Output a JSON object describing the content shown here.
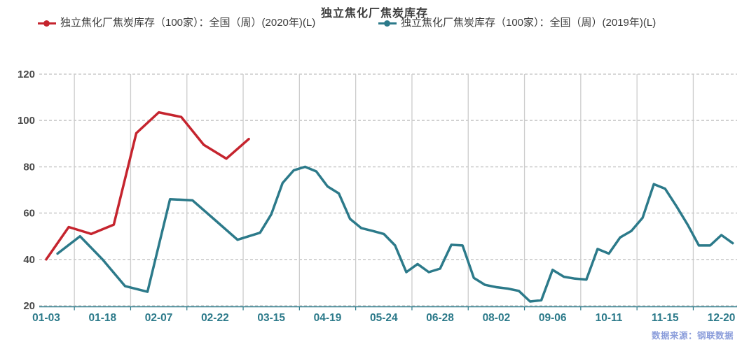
{
  "watermark": {
    "text": "数据来源：钢联数据"
  },
  "chart_data": {
    "type": "line",
    "title": "独立焦化厂焦炭库存",
    "legend_position": "top",
    "categories": [
      "01-03",
      "01-18",
      "02-07",
      "02-22",
      "03-15",
      "04-19",
      "05-24",
      "06-28",
      "08-02",
      "09-06",
      "10-11",
      "11-15",
      "12-20"
    ],
    "x_unit": "category-label index (0 = 01-03 tick, 12 = 12-20 tick)",
    "y_axis": {
      "min": 20,
      "max": 120,
      "ticks": [
        20,
        40,
        60,
        80,
        100,
        120
      ]
    },
    "grid": {
      "horizontal": "dashed",
      "vertical": "solid"
    },
    "colors": {
      "red": "#c5242e",
      "teal": "#2c7a8a",
      "grid": "#cccccc",
      "axis_line": "#2c7a8a",
      "y_label": "#4a4a4a",
      "x_label": "#2c7a8a",
      "title": "#3d3d3d",
      "legend_text": "#3c3c3c",
      "watermark": "#8094d8",
      "background": "#ffffff"
    },
    "series": [
      {
        "name": "独立焦化厂焦炭库存（100家）：全国（周）(2020年)(L)",
        "year": "2020",
        "color": "#c5242e",
        "points": [
          [
            0.0,
            40
          ],
          [
            0.4,
            54
          ],
          [
            0.8,
            51
          ],
          [
            1.2,
            55
          ],
          [
            1.6,
            94.5
          ],
          [
            2.0,
            103.5
          ],
          [
            2.4,
            101.5
          ],
          [
            2.8,
            89.5
          ],
          [
            3.2,
            83.5
          ],
          [
            3.6,
            92
          ]
        ]
      },
      {
        "name": "独立焦化厂焦炭库存（100家）：全国（周）(2019年)(L)",
        "year": "2019",
        "color": "#2c7a8a",
        "points": [
          [
            0.2,
            42.5
          ],
          [
            0.6,
            50
          ],
          [
            1.0,
            40
          ],
          [
            1.4,
            28.5
          ],
          [
            1.8,
            26
          ],
          [
            2.2,
            66
          ],
          [
            2.6,
            65.5
          ],
          [
            3.0,
            57
          ],
          [
            3.4,
            48.5
          ],
          [
            3.8,
            51.5
          ],
          [
            4.0,
            59.5
          ],
          [
            4.2,
            73
          ],
          [
            4.4,
            78.5
          ],
          [
            4.6,
            80
          ],
          [
            4.8,
            78
          ],
          [
            5.0,
            71.5
          ],
          [
            5.2,
            68.5
          ],
          [
            5.4,
            57.5
          ],
          [
            5.6,
            53.5
          ],
          [
            5.8,
            52.3
          ],
          [
            6.0,
            51
          ],
          [
            6.2,
            46
          ],
          [
            6.4,
            34.5
          ],
          [
            6.6,
            38
          ],
          [
            6.8,
            34.5
          ],
          [
            7.0,
            36
          ],
          [
            7.2,
            46.3
          ],
          [
            7.4,
            46
          ],
          [
            7.6,
            32
          ],
          [
            7.8,
            29
          ],
          [
            8.0,
            28
          ],
          [
            8.2,
            27.4
          ],
          [
            8.4,
            26.4
          ],
          [
            8.6,
            21.8
          ],
          [
            8.8,
            22.4
          ],
          [
            9.0,
            35.5
          ],
          [
            9.2,
            32.5
          ],
          [
            9.4,
            31.7
          ],
          [
            9.6,
            31.3
          ],
          [
            9.8,
            44.5
          ],
          [
            10.0,
            42.5
          ],
          [
            10.2,
            49.5
          ],
          [
            10.4,
            52.3
          ],
          [
            10.6,
            58
          ],
          [
            10.8,
            72.5
          ],
          [
            11.0,
            70.5
          ],
          [
            11.2,
            63
          ],
          [
            11.4,
            55
          ],
          [
            11.6,
            46
          ],
          [
            11.8,
            46
          ],
          [
            12.0,
            50.5
          ],
          [
            12.2,
            47
          ]
        ]
      }
    ]
  }
}
